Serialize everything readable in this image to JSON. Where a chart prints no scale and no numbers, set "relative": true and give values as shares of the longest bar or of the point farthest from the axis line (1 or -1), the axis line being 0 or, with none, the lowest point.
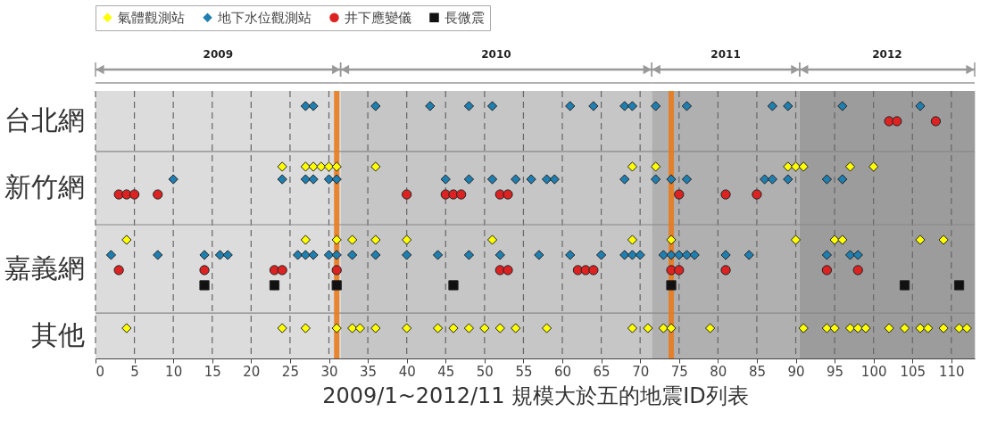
{
  "chart_data": {
    "type": "scatter",
    "relative": true,
    "xlabel": "2009/1~2012/11 規模大於五的地震ID列表",
    "xlim": [
      0,
      113
    ],
    "xticks": [
      0,
      5,
      10,
      15,
      20,
      25,
      30,
      35,
      40,
      45,
      50,
      55,
      60,
      65,
      70,
      75,
      80,
      85,
      90,
      95,
      100,
      105,
      110
    ],
    "annotations": [
      "台北網",
      "新竹網",
      "嘉義網",
      "其他"
    ],
    "grid": "x",
    "legend": "top",
    "series": [
      {
        "name": "氣體觀測站",
        "color": "#ffff00",
        "marker": "diamond",
        "x": [
          24,
          27,
          28,
          29,
          30,
          31,
          36,
          69,
          72,
          89,
          90,
          91,
          97,
          100,
          4,
          27,
          31,
          33,
          36,
          40,
          51,
          69,
          74,
          90,
          95,
          96,
          106,
          109,
          4,
          24,
          27,
          31,
          33,
          34,
          36,
          40,
          44,
          46,
          48,
          50,
          52,
          54,
          58,
          69,
          71,
          73,
          74,
          79,
          91,
          94,
          95,
          97,
          98,
          99,
          102,
          104,
          106,
          107,
          109,
          111,
          112
        ],
        "values": [
          0.76,
          0.76,
          0.76,
          0.76,
          0.76,
          0.76,
          0.76,
          0.76,
          0.76,
          0.76,
          0.76,
          0.76,
          0.76,
          0.76,
          0.47,
          0.47,
          0.47,
          0.47,
          0.47,
          0.47,
          0.47,
          0.47,
          0.47,
          0.47,
          0.47,
          0.47,
          0.47,
          0.47,
          0.12,
          0.12,
          0.12,
          0.12,
          0.12,
          0.12,
          0.12,
          0.12,
          0.12,
          0.12,
          0.12,
          0.12,
          0.12,
          0.12,
          0.12,
          0.12,
          0.12,
          0.12,
          0.12,
          0.12,
          0.12,
          0.12,
          0.12,
          0.12,
          0.12,
          0.12,
          0.12,
          0.12,
          0.12,
          0.12,
          0.12,
          0.12,
          0.12
        ]
      },
      {
        "name": "地下水位觀測站",
        "color": "#1f7fb0",
        "marker": "diamond",
        "x": [
          27,
          28,
          36,
          43,
          48,
          51,
          61,
          64,
          68,
          69,
          72,
          76,
          87,
          89,
          96,
          106,
          10,
          24,
          27,
          28,
          30,
          31,
          45,
          48,
          51,
          54,
          56,
          58,
          59,
          68,
          72,
          74,
          76,
          86,
          87,
          89,
          94,
          96,
          2,
          8,
          14,
          16,
          17,
          26,
          27,
          28,
          30,
          31,
          33,
          36,
          40,
          44,
          48,
          52,
          57,
          61,
          65,
          68,
          69,
          70,
          73,
          74,
          75,
          76,
          77,
          81,
          84,
          94,
          97,
          98
        ],
        "values": [
          1,
          1,
          1,
          1,
          1,
          1,
          1,
          1,
          1,
          1,
          1,
          1,
          1,
          1,
          1,
          1,
          0.71,
          0.71,
          0.71,
          0.71,
          0.71,
          0.71,
          0.71,
          0.71,
          0.71,
          0.71,
          0.71,
          0.71,
          0.71,
          0.71,
          0.71,
          0.71,
          0.71,
          0.71,
          0.71,
          0.71,
          0.71,
          0.71,
          0.41,
          0.41,
          0.41,
          0.41,
          0.41,
          0.41,
          0.41,
          0.41,
          0.41,
          0.41,
          0.41,
          0.41,
          0.41,
          0.41,
          0.41,
          0.41,
          0.41,
          0.41,
          0.41,
          0.41,
          0.41,
          0.41,
          0.41,
          0.41,
          0.41,
          0.41,
          0.41,
          0.41,
          0.41,
          0.41,
          0.41,
          0.41
        ]
      },
      {
        "name": "井下應變儀",
        "color": "#dd2222",
        "marker": "circle",
        "x": [
          102,
          103,
          108,
          3,
          4,
          5,
          8,
          40,
          45,
          46,
          47,
          52,
          53,
          75,
          81,
          85,
          3,
          14,
          23,
          24,
          31,
          52,
          53,
          62,
          63,
          64,
          74,
          75,
          81,
          94,
          98
        ],
        "values": [
          0.94,
          0.94,
          0.94,
          0.65,
          0.65,
          0.65,
          0.65,
          0.65,
          0.65,
          0.65,
          0.65,
          0.65,
          0.65,
          0.65,
          0.65,
          0.65,
          0.35,
          0.35,
          0.35,
          0.35,
          0.35,
          0.35,
          0.35,
          0.35,
          0.35,
          0.35,
          0.35,
          0.35,
          0.35,
          0.35,
          0.35
        ]
      },
      {
        "name": "長微震",
        "color": "#111111",
        "marker": "square",
        "x": [
          14,
          23,
          31,
          46,
          74,
          104,
          111
        ],
        "values": [
          0.29,
          0.29,
          0.29,
          0.29,
          0.29,
          0.29,
          0.29
        ]
      }
    ],
    "bands": [
      {
        "axis": "x",
        "from": 0,
        "to": 31.5,
        "label": "2009",
        "color": "#dcdcdc"
      },
      {
        "axis": "x",
        "from": 31.5,
        "to": 71.5,
        "label": "2010",
        "color": "#c6c6c6"
      },
      {
        "axis": "x",
        "from": 71.5,
        "to": 90.5,
        "label": "2011",
        "color": "#b0b0b0"
      },
      {
        "axis": "x",
        "from": 90.5,
        "to": 113,
        "label": "2012",
        "color": "#9c9c9c"
      }
    ],
    "ref_lines": [
      {
        "axis": "y",
        "value": 0.82,
        "color": "#888888"
      },
      {
        "axis": "y",
        "value": 0.53,
        "color": "#888888"
      },
      {
        "axis": "y",
        "value": 0.18,
        "color": "#888888"
      },
      {
        "axis": "x",
        "value": 31,
        "color": "#e87b1e"
      },
      {
        "axis": "x",
        "value": 74,
        "color": "#e87b1e"
      }
    ]
  }
}
